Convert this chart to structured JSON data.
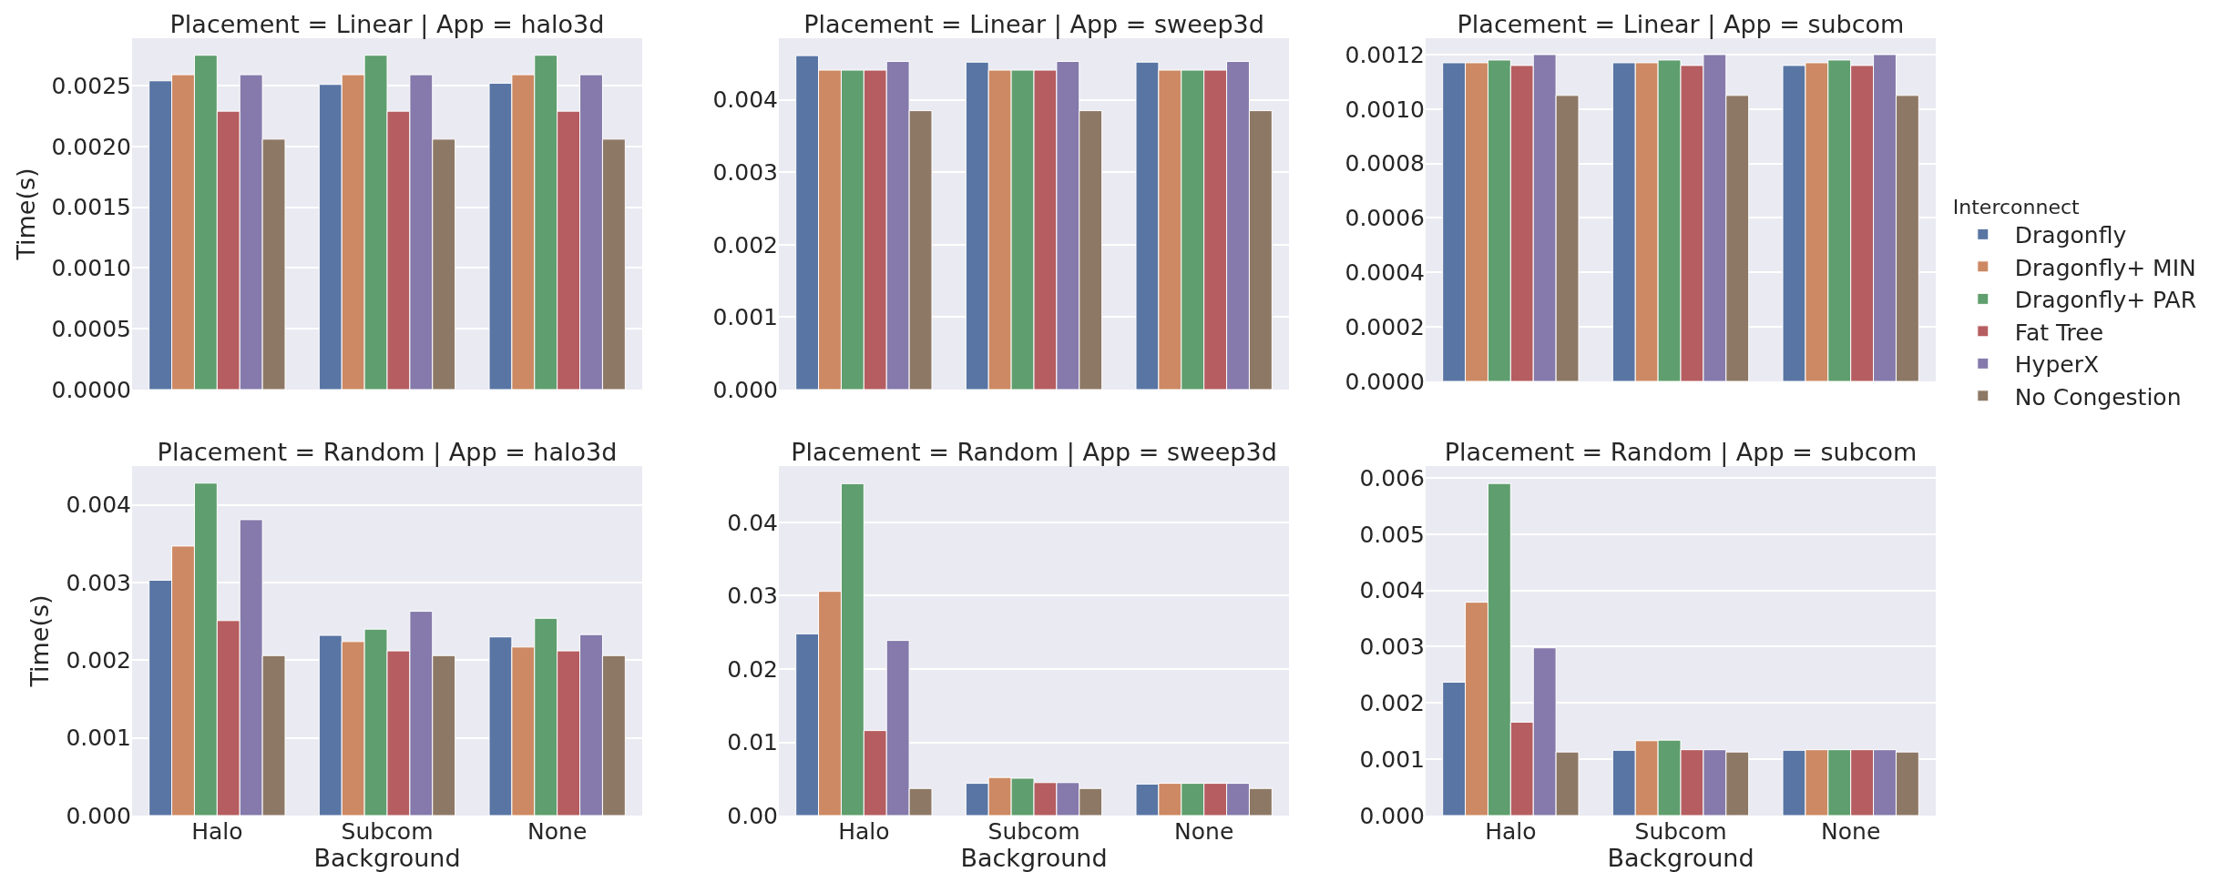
{
  "chart_data": [
    {
      "type": "bar",
      "title": "Placement = Linear | App = halo3d",
      "ylabel": "Time(s)",
      "categories": [
        null,
        null,
        null
      ],
      "tick_labels": "y",
      "grid": "y",
      "ylim": [
        0,
        0.00289
      ],
      "yticks": [
        {
          "value": 0,
          "label": "0.0000"
        },
        {
          "value": 0.0005,
          "label": "0.0005"
        },
        {
          "value": 0.001,
          "label": "0.0010"
        },
        {
          "value": 0.0015,
          "label": "0.0015"
        },
        {
          "value": 0.002,
          "label": "0.0020"
        },
        {
          "value": 0.0025,
          "label": "0.0025"
        }
      ],
      "series": [
        {
          "color": "#5975a4",
          "values": [
            0.00254,
            0.00251,
            0.00252
          ]
        },
        {
          "color": "#cc8963",
          "values": [
            0.00259,
            0.00259,
            0.00259
          ]
        },
        {
          "color": "#5f9e6e",
          "values": [
            0.00275,
            0.00275,
            0.00275
          ]
        },
        {
          "color": "#b55d60",
          "values": [
            0.00229,
            0.00229,
            0.00229
          ]
        },
        {
          "color": "#857aab",
          "values": [
            0.00259,
            0.00259,
            0.00259
          ]
        },
        {
          "color": "#8d7866",
          "values": [
            0.00206,
            0.00206,
            0.00206
          ]
        }
      ]
    },
    {
      "type": "bar",
      "title": "Placement = Linear | App = sweep3d",
      "categories": [
        null,
        null,
        null
      ],
      "tick_labels": "y",
      "grid": "y",
      "ylim": [
        0,
        0.00485
      ],
      "yticks": [
        {
          "value": 0,
          "label": "0.000"
        },
        {
          "value": 0.001,
          "label": "0.001"
        },
        {
          "value": 0.002,
          "label": "0.002"
        },
        {
          "value": 0.003,
          "label": "0.003"
        },
        {
          "value": 0.004,
          "label": "0.004"
        }
      ],
      "series": [
        {
          "color": "#5975a4",
          "values": [
            0.00461,
            0.00452,
            0.00452
          ]
        },
        {
          "color": "#cc8963",
          "values": [
            0.00441,
            0.00441,
            0.00441
          ]
        },
        {
          "color": "#5f9e6e",
          "values": [
            0.00441,
            0.00441,
            0.00441
          ]
        },
        {
          "color": "#b55d60",
          "values": [
            0.00441,
            0.00441,
            0.00441
          ]
        },
        {
          "color": "#857aab",
          "values": [
            0.00453,
            0.00453,
            0.00453
          ]
        },
        {
          "color": "#8d7866",
          "values": [
            0.00385,
            0.00385,
            0.00385
          ]
        }
      ]
    },
    {
      "type": "bar",
      "title": "Placement = Linear | App = subcom",
      "categories": [
        null,
        null,
        null
      ],
      "tick_labels": "y",
      "grid": "y",
      "legend": "right",
      "legend_title": "Interconnect",
      "ylim": [
        0,
        0.00126
      ],
      "yticks": [
        {
          "value": 0,
          "label": "0.0000"
        },
        {
          "value": 0.0002,
          "label": "0.0002"
        },
        {
          "value": 0.0004,
          "label": "0.0004"
        },
        {
          "value": 0.0006,
          "label": "0.0006"
        },
        {
          "value": 0.0008,
          "label": "0.0008"
        },
        {
          "value": 0.001,
          "label": "0.0010"
        },
        {
          "value": 0.0012,
          "label": "0.0012"
        }
      ],
      "series": [
        {
          "name": "Dragonfly",
          "color": "#5975a4",
          "values": [
            0.00117,
            0.00117,
            0.00116
          ]
        },
        {
          "name": "Dragonfly+ MIN",
          "color": "#cc8963",
          "values": [
            0.00117,
            0.00117,
            0.00117
          ]
        },
        {
          "name": "Dragonfly+ PAR",
          "color": "#5f9e6e",
          "values": [
            0.00118,
            0.00118,
            0.00118
          ]
        },
        {
          "name": "Fat Tree",
          "color": "#b55d60",
          "values": [
            0.00116,
            0.00116,
            0.00116
          ]
        },
        {
          "name": "HyperX",
          "color": "#857aab",
          "values": [
            0.0012,
            0.0012,
            0.0012
          ]
        },
        {
          "name": "No Congestion",
          "color": "#8d7866",
          "values": [
            0.00105,
            0.00105,
            0.00105
          ]
        }
      ]
    },
    {
      "type": "bar",
      "title": "Placement = Random | App = halo3d",
      "xlabel": "Background",
      "ylabel": "Time(s)",
      "categories": [
        "Halo",
        "Subcom",
        "None"
      ],
      "grid": "y",
      "ylim": [
        0,
        0.0045
      ],
      "yticks": [
        {
          "value": 0,
          "label": "0.000"
        },
        {
          "value": 0.001,
          "label": "0.001"
        },
        {
          "value": 0.002,
          "label": "0.002"
        },
        {
          "value": 0.003,
          "label": "0.003"
        },
        {
          "value": 0.004,
          "label": "0.004"
        }
      ],
      "series": [
        {
          "color": "#5975a4",
          "values": [
            0.00303,
            0.00232,
            0.0023
          ]
        },
        {
          "color": "#cc8963",
          "values": [
            0.00347,
            0.00224,
            0.00217
          ]
        },
        {
          "color": "#5f9e6e",
          "values": [
            0.00428,
            0.0024,
            0.00254
          ]
        },
        {
          "color": "#b55d60",
          "values": [
            0.00251,
            0.00212,
            0.00212
          ]
        },
        {
          "color": "#857aab",
          "values": [
            0.00381,
            0.00263,
            0.00233
          ]
        },
        {
          "color": "#8d7866",
          "values": [
            0.00206,
            0.00206,
            0.00206
          ]
        }
      ]
    },
    {
      "type": "bar",
      "title": "Placement = Random | App = sweep3d",
      "xlabel": "Background",
      "categories": [
        "Halo",
        "Subcom",
        "None"
      ],
      "grid": "y",
      "ylim": [
        0,
        0.0477
      ],
      "yticks": [
        {
          "value": 0,
          "label": "0.00"
        },
        {
          "value": 0.01,
          "label": "0.01"
        },
        {
          "value": 0.02,
          "label": "0.02"
        },
        {
          "value": 0.03,
          "label": "0.03"
        },
        {
          "value": 0.04,
          "label": "0.04"
        }
      ],
      "series": [
        {
          "color": "#5975a4",
          "values": [
            0.0248,
            0.0044,
            0.0043
          ]
        },
        {
          "color": "#cc8963",
          "values": [
            0.0306,
            0.0052,
            0.0044
          ]
        },
        {
          "color": "#5f9e6e",
          "values": [
            0.0453,
            0.0051,
            0.0044
          ]
        },
        {
          "color": "#b55d60",
          "values": [
            0.0116,
            0.0045,
            0.0044
          ]
        },
        {
          "color": "#857aab",
          "values": [
            0.0239,
            0.0045,
            0.0044
          ]
        },
        {
          "color": "#8d7866",
          "values": [
            0.0037,
            0.0037,
            0.0037
          ]
        }
      ]
    },
    {
      "type": "bar",
      "title": "Placement = Random | App = subcom",
      "xlabel": "Background",
      "categories": [
        "Halo",
        "Subcom",
        "None"
      ],
      "grid": "y",
      "ylim": [
        0,
        0.00621
      ],
      "yticks": [
        {
          "value": 0,
          "label": "0.000"
        },
        {
          "value": 0.001,
          "label": "0.001"
        },
        {
          "value": 0.002,
          "label": "0.002"
        },
        {
          "value": 0.003,
          "label": "0.003"
        },
        {
          "value": 0.004,
          "label": "0.004"
        },
        {
          "value": 0.005,
          "label": "0.005"
        },
        {
          "value": 0.006,
          "label": "0.006"
        }
      ],
      "series": [
        {
          "color": "#5975a4",
          "values": [
            0.00237,
            0.00116,
            0.00116
          ]
        },
        {
          "color": "#cc8963",
          "values": [
            0.00379,
            0.00133,
            0.00117
          ]
        },
        {
          "color": "#5f9e6e",
          "values": [
            0.0059,
            0.00134,
            0.00117
          ]
        },
        {
          "color": "#b55d60",
          "values": [
            0.00166,
            0.00117,
            0.00117
          ]
        },
        {
          "color": "#857aab",
          "values": [
            0.00298,
            0.00117,
            0.00117
          ]
        },
        {
          "color": "#8d7866",
          "values": [
            0.00113,
            0.00113,
            0.00113
          ]
        }
      ]
    }
  ]
}
